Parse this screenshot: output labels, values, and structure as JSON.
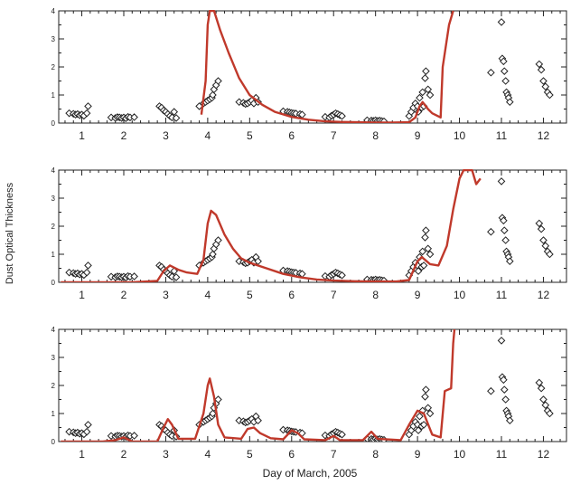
{
  "chart_data": {
    "type": "scatter",
    "xlabel": "Day of March, 2005",
    "ylabel": "Dust Optical Thickness",
    "colors": {
      "model": "#c0392b",
      "obs": "#222222"
    },
    "panels": [
      {
        "xlim": [
          0.45,
          12.55
        ],
        "ylim": [
          0,
          4
        ],
        "xticks": [
          1,
          2,
          3,
          4,
          5,
          6,
          7,
          8,
          9,
          10,
          11,
          12
        ],
        "yticks": [
          0,
          1,
          2,
          3,
          4
        ],
        "series": [
          {
            "type": "line",
            "points": [
              [
                3.85,
                0.3
              ],
              [
                3.95,
                1.5
              ],
              [
                4.0,
                3.5
              ],
              [
                4.05,
                4.0
              ],
              [
                4.15,
                4.0
              ],
              [
                4.3,
                3.3
              ],
              [
                4.5,
                2.5
              ],
              [
                4.75,
                1.6
              ],
              [
                5.0,
                1.0
              ],
              [
                5.3,
                0.65
              ],
              [
                5.6,
                0.4
              ],
              [
                6.0,
                0.22
              ],
              [
                6.4,
                0.12
              ],
              [
                6.8,
                0.06
              ],
              [
                7.2,
                0.04
              ],
              [
                7.6,
                0.03
              ],
              [
                8.0,
                0.02
              ],
              [
                8.4,
                0.02
              ],
              [
                8.8,
                0.03
              ],
              [
                8.95,
                0.2
              ],
              [
                9.05,
                0.6
              ],
              [
                9.12,
                0.75
              ],
              [
                9.25,
                0.5
              ],
              [
                9.35,
                0.35
              ],
              [
                9.55,
                0.2
              ],
              [
                9.6,
                2.0
              ],
              [
                9.75,
                3.5
              ],
              [
                9.85,
                4.0
              ]
            ]
          }
        ]
      },
      {
        "xlim": [
          0.45,
          12.55
        ],
        "ylim": [
          0,
          4
        ],
        "xticks": [
          1,
          2,
          3,
          4,
          5,
          6,
          7,
          8,
          9,
          10,
          11,
          12
        ],
        "yticks": [
          0,
          1,
          2,
          3,
          4
        ],
        "series": [
          {
            "type": "line",
            "points": [
              [
                0.5,
                0.0
              ],
              [
                1.5,
                0.0
              ],
              [
                2.2,
                0.0
              ],
              [
                2.8,
                0.05
              ],
              [
                2.95,
                0.4
              ],
              [
                3.1,
                0.6
              ],
              [
                3.3,
                0.45
              ],
              [
                3.5,
                0.35
              ],
              [
                3.75,
                0.3
              ],
              [
                3.9,
                0.8
              ],
              [
                4.0,
                2.1
              ],
              [
                4.08,
                2.55
              ],
              [
                4.2,
                2.4
              ],
              [
                4.4,
                1.7
              ],
              [
                4.6,
                1.2
              ],
              [
                4.8,
                0.85
              ],
              [
                5.0,
                0.7
              ],
              [
                5.4,
                0.5
              ],
              [
                5.8,
                0.3
              ],
              [
                6.2,
                0.18
              ],
              [
                6.6,
                0.1
              ],
              [
                7.0,
                0.06
              ],
              [
                7.5,
                0.04
              ],
              [
                8.0,
                0.03
              ],
              [
                8.5,
                0.03
              ],
              [
                8.8,
                0.08
              ],
              [
                9.0,
                0.75
              ],
              [
                9.1,
                0.9
              ],
              [
                9.3,
                0.65
              ],
              [
                9.5,
                0.6
              ],
              [
                9.7,
                1.3
              ],
              [
                9.85,
                2.6
              ],
              [
                10.0,
                3.7
              ],
              [
                10.1,
                4.0
              ],
              [
                10.3,
                4.0
              ],
              [
                10.4,
                3.5
              ],
              [
                10.5,
                3.7
              ]
            ]
          }
        ]
      },
      {
        "xlim": [
          0.45,
          12.55
        ],
        "ylim": [
          0,
          4
        ],
        "xticks": [
          1,
          2,
          3,
          4,
          5,
          6,
          7,
          8,
          9,
          10,
          11,
          12
        ],
        "yticks": [
          0,
          1,
          2,
          3,
          4
        ],
        "series": [
          {
            "type": "line",
            "points": [
              [
                0.5,
                0.0
              ],
              [
                1.5,
                0.0
              ],
              [
                1.8,
                0.05
              ],
              [
                2.0,
                0.15
              ],
              [
                2.2,
                0.0
              ],
              [
                2.8,
                0.0
              ],
              [
                2.95,
                0.5
              ],
              [
                3.05,
                0.8
              ],
              [
                3.15,
                0.6
              ],
              [
                3.3,
                0.1
              ],
              [
                3.7,
                0.1
              ],
              [
                3.9,
                1.0
              ],
              [
                4.0,
                2.0
              ],
              [
                4.05,
                2.25
              ],
              [
                4.15,
                1.6
              ],
              [
                4.25,
                0.6
              ],
              [
                4.4,
                0.15
              ],
              [
                4.8,
                0.1
              ],
              [
                4.95,
                0.45
              ],
              [
                5.1,
                0.5
              ],
              [
                5.25,
                0.3
              ],
              [
                5.5,
                0.12
              ],
              [
                5.8,
                0.08
              ],
              [
                6.0,
                0.4
              ],
              [
                6.15,
                0.3
              ],
              [
                6.3,
                0.08
              ],
              [
                6.8,
                0.05
              ],
              [
                7.0,
                0.2
              ],
              [
                7.15,
                0.05
              ],
              [
                7.7,
                0.05
              ],
              [
                7.9,
                0.35
              ],
              [
                8.05,
                0.1
              ],
              [
                8.6,
                0.05
              ],
              [
                8.8,
                0.6
              ],
              [
                9.0,
                1.1
              ],
              [
                9.15,
                1.0
              ],
              [
                9.35,
                0.25
              ],
              [
                9.55,
                0.15
              ],
              [
                9.65,
                1.8
              ],
              [
                9.8,
                1.9
              ],
              [
                9.85,
                3.5
              ],
              [
                9.88,
                4.0
              ]
            ]
          }
        ]
      }
    ],
    "observations": [
      [
        0.7,
        0.35
      ],
      [
        0.8,
        0.33
      ],
      [
        0.85,
        0.3
      ],
      [
        0.9,
        0.32
      ],
      [
        0.95,
        0.28
      ],
      [
        1.0,
        0.3
      ],
      [
        1.05,
        0.26
      ],
      [
        1.12,
        0.35
      ],
      [
        1.15,
        0.6
      ],
      [
        1.7,
        0.2
      ],
      [
        1.8,
        0.18
      ],
      [
        1.85,
        0.21
      ],
      [
        1.9,
        0.2
      ],
      [
        1.95,
        0.18
      ],
      [
        2.0,
        0.2
      ],
      [
        2.05,
        0.17
      ],
      [
        2.1,
        0.22
      ],
      [
        2.15,
        0.2
      ],
      [
        2.25,
        0.21
      ],
      [
        2.85,
        0.6
      ],
      [
        2.9,
        0.55
      ],
      [
        2.95,
        0.45
      ],
      [
        3.0,
        0.4
      ],
      [
        3.05,
        0.32
      ],
      [
        3.1,
        0.25
      ],
      [
        3.15,
        0.2
      ],
      [
        3.2,
        0.4
      ],
      [
        3.25,
        0.18
      ],
      [
        3.8,
        0.6
      ],
      [
        3.9,
        0.7
      ],
      [
        3.95,
        0.75
      ],
      [
        4.0,
        0.8
      ],
      [
        4.05,
        0.85
      ],
      [
        4.1,
        0.9
      ],
      [
        4.12,
        1.0
      ],
      [
        4.15,
        1.2
      ],
      [
        4.2,
        1.35
      ],
      [
        4.25,
        1.5
      ],
      [
        4.75,
        0.75
      ],
      [
        4.85,
        0.72
      ],
      [
        4.9,
        0.68
      ],
      [
        4.95,
        0.7
      ],
      [
        5.0,
        0.75
      ],
      [
        5.05,
        0.8
      ],
      [
        5.1,
        0.7
      ],
      [
        5.15,
        0.9
      ],
      [
        5.2,
        0.75
      ],
      [
        5.8,
        0.42
      ],
      [
        5.9,
        0.4
      ],
      [
        5.95,
        0.38
      ],
      [
        6.0,
        0.36
      ],
      [
        6.05,
        0.35
      ],
      [
        6.1,
        0.34
      ],
      [
        6.2,
        0.32
      ],
      [
        6.25,
        0.3
      ],
      [
        6.8,
        0.22
      ],
      [
        6.9,
        0.2
      ],
      [
        6.95,
        0.26
      ],
      [
        7.0,
        0.3
      ],
      [
        7.05,
        0.35
      ],
      [
        7.1,
        0.32
      ],
      [
        7.15,
        0.28
      ],
      [
        7.2,
        0.25
      ],
      [
        7.8,
        0.1
      ],
      [
        7.9,
        0.09
      ],
      [
        7.95,
        0.08
      ],
      [
        8.0,
        0.1
      ],
      [
        8.05,
        0.08
      ],
      [
        8.1,
        0.09
      ],
      [
        8.15,
        0.07
      ],
      [
        8.2,
        0.06
      ],
      [
        8.8,
        0.25
      ],
      [
        8.85,
        0.4
      ],
      [
        8.9,
        0.55
      ],
      [
        8.95,
        0.7
      ],
      [
        9.0,
        0.6
      ],
      [
        9.02,
        0.4
      ],
      [
        9.05,
        0.9
      ],
      [
        9.1,
        0.55
      ],
      [
        9.12,
        1.1
      ],
      [
        9.15,
        0.6
      ],
      [
        9.18,
        1.6
      ],
      [
        9.2,
        1.85
      ],
      [
        9.25,
        1.2
      ],
      [
        9.3,
        1.0
      ],
      [
        10.75,
        1.8
      ],
      [
        11.0,
        3.6
      ],
      [
        11.02,
        2.3
      ],
      [
        11.05,
        2.2
      ],
      [
        11.07,
        1.85
      ],
      [
        11.1,
        1.5
      ],
      [
        11.12,
        1.1
      ],
      [
        11.15,
        1.0
      ],
      [
        11.17,
        0.9
      ],
      [
        11.2,
        0.75
      ],
      [
        11.9,
        2.1
      ],
      [
        11.95,
        1.9
      ],
      [
        12.0,
        1.5
      ],
      [
        12.05,
        1.3
      ],
      [
        12.1,
        1.1
      ],
      [
        12.15,
        1.0
      ]
    ]
  }
}
